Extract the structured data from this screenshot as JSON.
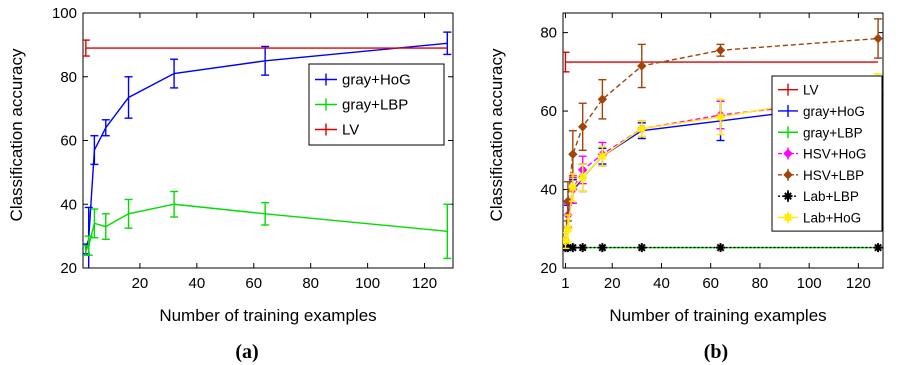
{
  "chart_data": [
    {
      "type": "line",
      "caption": "(a)",
      "xlabel": "Number of training examples",
      "ylabel": "Classification accuracy",
      "xlim": [
        0,
        130
      ],
      "ylim": [
        20,
        100
      ],
      "x_ticks": [
        20,
        40,
        60,
        80,
        100,
        120
      ],
      "y_ticks": [
        20,
        40,
        60,
        80,
        100
      ],
      "grid": false,
      "legend_placement": "right",
      "series": [
        {
          "name": "gray+HoG",
          "color": "#0000ff",
          "dash": false,
          "marker": "none",
          "x": [
            1,
            2,
            4,
            8,
            16,
            32,
            64,
            128
          ],
          "y": [
            26,
            29,
            57,
            64,
            73.5,
            81,
            85,
            90.5
          ],
          "err": [
            1.5,
            10,
            4.5,
            2.5,
            6.5,
            4.5,
            4.5,
            3.5
          ]
        },
        {
          "name": "gray+LBP",
          "color": "#00dd00",
          "dash": false,
          "marker": "none",
          "x": [
            1,
            2,
            4,
            8,
            16,
            32,
            64,
            128
          ],
          "y": [
            25.5,
            27,
            34,
            33,
            37,
            40,
            37,
            31.5
          ],
          "err": [
            1.5,
            3,
            4.5,
            4,
            4.5,
            4,
            3.5,
            8.5
          ]
        },
        {
          "name": "LV",
          "color": "#dd0000",
          "dash": false,
          "marker": "none",
          "x": [
            1,
            128
          ],
          "y": [
            89,
            89
          ],
          "err": [
            2.5,
            0
          ]
        }
      ]
    },
    {
      "type": "line",
      "caption": "(b)",
      "xlabel": "Number of training examples",
      "ylabel": "Classification accuracy",
      "xlim": [
        0,
        130
      ],
      "ylim": [
        20,
        85
      ],
      "x_ticks": [
        1,
        20,
        40,
        60,
        80,
        100,
        120
      ],
      "y_ticks": [
        20,
        40,
        60,
        80
      ],
      "grid": false,
      "legend_placement": "right",
      "series": [
        {
          "name": "LV",
          "color": "#dd0000",
          "dash": false,
          "marker": "none",
          "x": [
            1,
            128
          ],
          "y": [
            72.5,
            72.5
          ],
          "err": [
            2.5,
            0
          ]
        },
        {
          "name": "gray+HoG",
          "color": "#0000ff",
          "dash": false,
          "marker": "none",
          "x": [
            1,
            2,
            4,
            8,
            16,
            32,
            64,
            128
          ],
          "y": [
            25.5,
            33,
            39.5,
            43,
            48.5,
            55,
            57.5,
            62.5
          ],
          "err": [
            1,
            3,
            3,
            3.5,
            2,
            2,
            5,
            4
          ]
        },
        {
          "name": "gray+LBP",
          "color": "#00dd00",
          "dash": false,
          "marker": "none",
          "x": [
            1,
            2,
            4,
            8,
            16,
            32,
            64,
            128
          ],
          "y": [
            25.2,
            25.2,
            25.2,
            25.2,
            25.2,
            25.2,
            25.2,
            25.2
          ],
          "err": [
            0,
            0,
            0,
            0,
            0,
            0,
            0,
            0
          ]
        },
        {
          "name": "HSV+HoG",
          "color": "#ff00ff",
          "dash": true,
          "marker": "diamond",
          "x": [
            1,
            2,
            4,
            8,
            16,
            32,
            64,
            128
          ],
          "y": [
            27,
            33.5,
            40,
            45,
            49,
            55.5,
            59,
            63.5
          ],
          "err": [
            2,
            3,
            3.5,
            3.5,
            3,
            2,
            3.5,
            3.5
          ]
        },
        {
          "name": "HSV+LBP",
          "color": "#a0440a",
          "dash": true,
          "marker": "diamond",
          "x": [
            1,
            2,
            4,
            8,
            16,
            32,
            64,
            128
          ],
          "y": [
            27,
            37,
            49,
            56,
            63,
            71.5,
            75.5,
            78.5
          ],
          "err": [
            2,
            5,
            6,
            6,
            5,
            5.5,
            1.5,
            5
          ]
        },
        {
          "name": "Lab+LBP",
          "color": "#000000",
          "dash": true,
          "marker": "star",
          "x": [
            1,
            2,
            4,
            8,
            16,
            32,
            64,
            128
          ],
          "y": [
            25.2,
            25.2,
            25.2,
            25.2,
            25.2,
            25.2,
            25.2,
            25.2
          ],
          "err": [
            0,
            0,
            0,
            0,
            0,
            0,
            0,
            0
          ]
        },
        {
          "name": "Lab+HoG",
          "color": "#ffee00",
          "dash": false,
          "marker": "star",
          "x": [
            1,
            2,
            4,
            8,
            16,
            32,
            64,
            128
          ],
          "y": [
            27,
            30,
            40.5,
            43,
            48.5,
            55.5,
            58.5,
            65.5
          ],
          "err": [
            2,
            3.5,
            3.5,
            3.5,
            2.5,
            2,
            4.5,
            4
          ]
        }
      ]
    }
  ]
}
